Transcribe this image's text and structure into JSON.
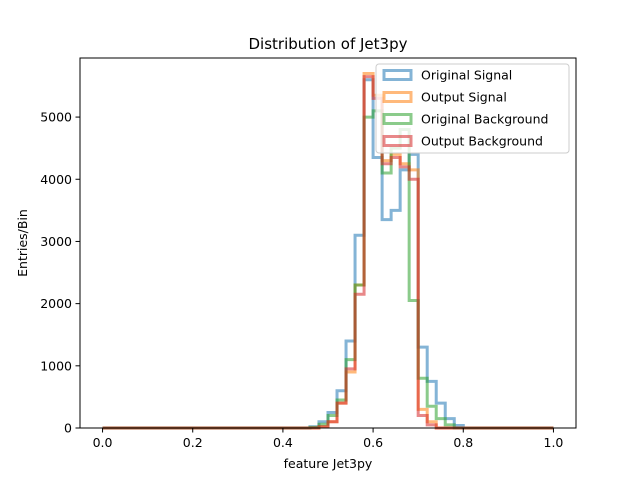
{
  "chart_data": {
    "type": "step-histogram",
    "title": "Distribution of Jet3py",
    "xlabel": "feature Jet3py",
    "ylabel": "Entries/Bin",
    "xlim": [
      -0.05,
      1.05
    ],
    "ylim": [
      0,
      5950
    ],
    "xticks": [
      0.0,
      0.2,
      0.4,
      0.6,
      0.8,
      1.0
    ],
    "xtick_labels": [
      "0.0",
      "0.2",
      "0.4",
      "0.6",
      "0.8",
      "1.0"
    ],
    "yticks": [
      0,
      1000,
      2000,
      3000,
      4000,
      5000
    ],
    "ytick_labels": [
      "0",
      "1000",
      "2000",
      "3000",
      "4000",
      "5000"
    ],
    "bin_edges": [
      0.0,
      0.42,
      0.44,
      0.46,
      0.48,
      0.5,
      0.52,
      0.54,
      0.56,
      0.58,
      0.6,
      0.62,
      0.64,
      0.66,
      0.68,
      0.7,
      0.72,
      0.74,
      0.76,
      0.78,
      0.8,
      1.0
    ],
    "legend_position": "upper right",
    "series": [
      {
        "name": "Original Signal",
        "color": "#1f77b4",
        "values": [
          0,
          0,
          0,
          20,
          100,
          250,
          600,
          1400,
          3100,
          5600,
          4350,
          3350,
          3500,
          4150,
          4400,
          1300,
          750,
          400,
          150,
          40,
          0
        ]
      },
      {
        "name": "Output Signal",
        "color": "#ff7f0e",
        "values": [
          0,
          0,
          0,
          0,
          20,
          100,
          400,
          900,
          2300,
          5700,
          5350,
          4300,
          4400,
          4250,
          4150,
          300,
          100,
          0,
          0,
          0,
          0
        ]
      },
      {
        "name": "Original Background",
        "color": "#2ca02c",
        "values": [
          0,
          0,
          0,
          10,
          60,
          200,
          450,
          1100,
          2300,
          5000,
          5100,
          4100,
          4500,
          4800,
          2050,
          800,
          350,
          150,
          50,
          0,
          0
        ]
      },
      {
        "name": "Output Background",
        "color": "#d62728",
        "values": [
          0,
          0,
          0,
          0,
          20,
          100,
          400,
          950,
          2150,
          5650,
          5300,
          4250,
          4350,
          4200,
          4000,
          200,
          50,
          0,
          0,
          0,
          0
        ]
      }
    ]
  }
}
